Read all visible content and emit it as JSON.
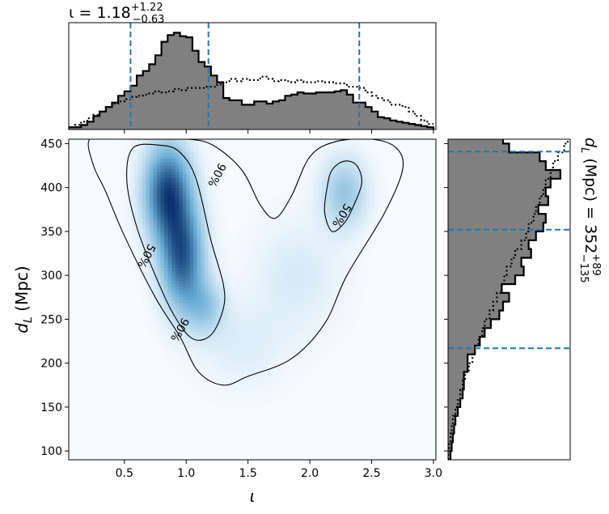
{
  "colors": {
    "hist_fill": "#808080",
    "hist_edge": "#000000",
    "quantile_line": "#1f77b4",
    "density_low": "#f7fbff",
    "density_high": "#08306b",
    "contour": "#000000"
  },
  "chart_data": [
    {
      "type": "heatmap",
      "name": "joint-posterior",
      "xlabel": "ι",
      "ylabel_symbol": "d",
      "ylabel_sub": "L",
      "ylabel_unit": "(Mpc)",
      "xlim": [
        0.05,
        3.02
      ],
      "ylim": [
        90,
        455
      ],
      "xticks": [
        0.5,
        1.0,
        1.5,
        2.0,
        2.5,
        3.0
      ],
      "xticklabels": [
        "0.5",
        "1.0",
        "1.5",
        "2.0",
        "2.5",
        "3.0"
      ],
      "yticks": [
        100,
        150,
        200,
        250,
        300,
        350,
        400,
        450
      ],
      "yticklabels": [
        "100",
        "150",
        "200",
        "250",
        "300",
        "350",
        "400",
        "450"
      ],
      "blobs": [
        {
          "x": 0.85,
          "y": 395,
          "sx": 0.13,
          "sy": 38,
          "w": 1.0
        },
        {
          "x": 0.97,
          "y": 320,
          "sx": 0.12,
          "sy": 40,
          "w": 0.9
        },
        {
          "x": 1.15,
          "y": 265,
          "sx": 0.11,
          "sy": 22,
          "w": 0.35
        },
        {
          "x": 2.28,
          "y": 395,
          "sx": 0.13,
          "sy": 28,
          "w": 0.38
        },
        {
          "x": 1.9,
          "y": 300,
          "sx": 0.25,
          "sy": 45,
          "w": 0.12
        },
        {
          "x": 1.45,
          "y": 220,
          "sx": 0.25,
          "sy": 35,
          "w": 0.1
        }
      ],
      "contours": [
        {
          "label": "90%",
          "points": [
            [
              0.22,
              455
            ],
            [
              0.45,
              455
            ],
            [
              0.78,
              455
            ],
            [
              1.02,
              455
            ],
            [
              1.22,
              448
            ],
            [
              1.45,
              420
            ],
            [
              1.6,
              380
            ],
            [
              1.72,
              365
            ],
            [
              1.85,
              390
            ],
            [
              2.0,
              435
            ],
            [
              2.2,
              452
            ],
            [
              2.5,
              455
            ],
            [
              2.7,
              445
            ],
            [
              2.75,
              420
            ],
            [
              2.6,
              370
            ],
            [
              2.3,
              300
            ],
            [
              2.12,
              245
            ],
            [
              1.85,
              205
            ],
            [
              1.5,
              185
            ],
            [
              1.3,
              175
            ],
            [
              1.1,
              190
            ],
            [
              0.95,
              230
            ],
            [
              0.75,
              275
            ],
            [
              0.5,
              345
            ],
            [
              0.35,
              395
            ],
            [
              0.25,
              425
            ]
          ],
          "label_pos": [
            [
              1.25,
              414,
              -62
            ],
            [
              0.95,
              238,
              -60
            ]
          ]
        },
        {
          "label": "50%",
          "points": [
            [
              0.57,
              445
            ],
            [
              0.8,
              448
            ],
            [
              0.95,
              440
            ],
            [
              1.08,
              410
            ],
            [
              1.2,
              340
            ],
            [
              1.3,
              290
            ],
            [
              1.3,
              262
            ],
            [
              1.2,
              232
            ],
            [
              1.05,
              228
            ],
            [
              0.9,
              255
            ],
            [
              0.75,
              300
            ],
            [
              0.6,
              355
            ],
            [
              0.52,
              408
            ]
          ],
          "label_pos": [
            [
              0.68,
              322,
              -62
            ]
          ]
        },
        {
          "label": "50%",
          "points": [
            [
              2.18,
              420
            ],
            [
              2.28,
              430
            ],
            [
              2.38,
              425
            ],
            [
              2.42,
              405
            ],
            [
              2.35,
              378
            ],
            [
              2.28,
              360
            ],
            [
              2.18,
              350
            ],
            [
              2.12,
              372
            ],
            [
              2.14,
              400
            ]
          ],
          "label_pos": [
            [
              2.26,
              368,
              -58
            ]
          ]
        }
      ]
    },
    {
      "type": "bar",
      "name": "iota-marginal",
      "title_symbol": "ι",
      "title_median": "1.18",
      "title_plus": "+1.22",
      "title_minus": "−0.63",
      "bin_edges": [
        0.05,
        0.1,
        0.15,
        0.2,
        0.25,
        0.3,
        0.35,
        0.4,
        0.45,
        0.5,
        0.55,
        0.6,
        0.65,
        0.7,
        0.75,
        0.8,
        0.85,
        0.9,
        0.95,
        1.0,
        1.05,
        1.1,
        1.15,
        1.2,
        1.25,
        1.3,
        1.35,
        1.4,
        1.45,
        1.5,
        1.55,
        1.6,
        1.65,
        1.7,
        1.75,
        1.8,
        1.85,
        1.9,
        1.95,
        2.0,
        2.05,
        2.1,
        2.15,
        2.2,
        2.25,
        2.3,
        2.35,
        2.4,
        2.45,
        2.5,
        2.55,
        2.6,
        2.65,
        2.7,
        2.75,
        2.8,
        2.85,
        2.9,
        2.95,
        3.0
      ],
      "values": [
        0.02,
        0.02,
        0.04,
        0.07,
        0.12,
        0.16,
        0.2,
        0.24,
        0.3,
        0.34,
        0.39,
        0.48,
        0.52,
        0.58,
        0.66,
        0.78,
        0.84,
        0.86,
        0.83,
        0.82,
        0.7,
        0.6,
        0.56,
        0.48,
        0.42,
        0.28,
        0.26,
        0.26,
        0.22,
        0.22,
        0.25,
        0.25,
        0.23,
        0.25,
        0.26,
        0.3,
        0.31,
        0.33,
        0.32,
        0.32,
        0.33,
        0.33,
        0.33,
        0.34,
        0.35,
        0.31,
        0.24,
        0.24,
        0.2,
        0.16,
        0.11,
        0.1,
        0.08,
        0.07,
        0.06,
        0.05,
        0.04,
        0.03,
        0.02
      ],
      "prior": [
        0.02,
        0.04,
        0.07,
        0.1,
        0.13,
        0.16,
        0.2,
        0.23,
        0.25,
        0.27,
        0.29,
        0.3,
        0.31,
        0.32,
        0.34,
        0.33,
        0.34,
        0.36,
        0.35,
        0.37,
        0.37,
        0.37,
        0.38,
        0.38,
        0.4,
        0.42,
        0.45,
        0.43,
        0.45,
        0.44,
        0.44,
        0.47,
        0.45,
        0.43,
        0.44,
        0.43,
        0.42,
        0.44,
        0.42,
        0.42,
        0.43,
        0.42,
        0.42,
        0.41,
        0.41,
        0.38,
        0.38,
        0.37,
        0.33,
        0.3,
        0.28,
        0.26,
        0.22,
        0.22,
        0.2,
        0.16,
        0.12,
        0.08,
        0.05
      ],
      "ymax": 0.95,
      "quantiles": [
        0.55,
        1.18,
        2.4
      ]
    },
    {
      "type": "bar",
      "orientation": "horizontal",
      "name": "distance-marginal",
      "title_symbol": "d",
      "title_sub": "L",
      "title_unit": "(Mpc)",
      "title_median": "352",
      "title_plus": "+89",
      "title_minus": "−135",
      "bin_edges": [
        90,
        100,
        110,
        120,
        130,
        140,
        150,
        160,
        170,
        180,
        190,
        200,
        210,
        220,
        230,
        240,
        250,
        260,
        270,
        280,
        290,
        300,
        310,
        320,
        330,
        340,
        350,
        360,
        370,
        380,
        390,
        400,
        410,
        420,
        430,
        440,
        450,
        460
      ],
      "values": [
        0.02,
        0.03,
        0.04,
        0.05,
        0.06,
        0.08,
        0.1,
        0.12,
        0.13,
        0.13,
        0.16,
        0.16,
        0.22,
        0.26,
        0.3,
        0.35,
        0.42,
        0.45,
        0.5,
        0.44,
        0.55,
        0.62,
        0.6,
        0.68,
        0.66,
        0.72,
        0.78,
        0.8,
        0.74,
        0.82,
        0.8,
        0.84,
        0.92,
        0.8,
        0.75,
        0.5,
        0.45
      ],
      "prior": [
        0.0,
        0.01,
        0.02,
        0.03,
        0.04,
        0.06,
        0.08,
        0.1,
        0.12,
        0.14,
        0.17,
        0.2,
        0.22,
        0.25,
        0.28,
        0.3,
        0.34,
        0.37,
        0.4,
        0.44,
        0.46,
        0.48,
        0.52,
        0.55,
        0.6,
        0.64,
        0.66,
        0.7,
        0.72,
        0.75,
        0.78,
        0.8,
        0.84,
        0.86,
        0.9,
        0.95,
        0.98
      ],
      "xmax": 1.0,
      "quantiles": [
        217,
        352,
        441
      ]
    }
  ]
}
